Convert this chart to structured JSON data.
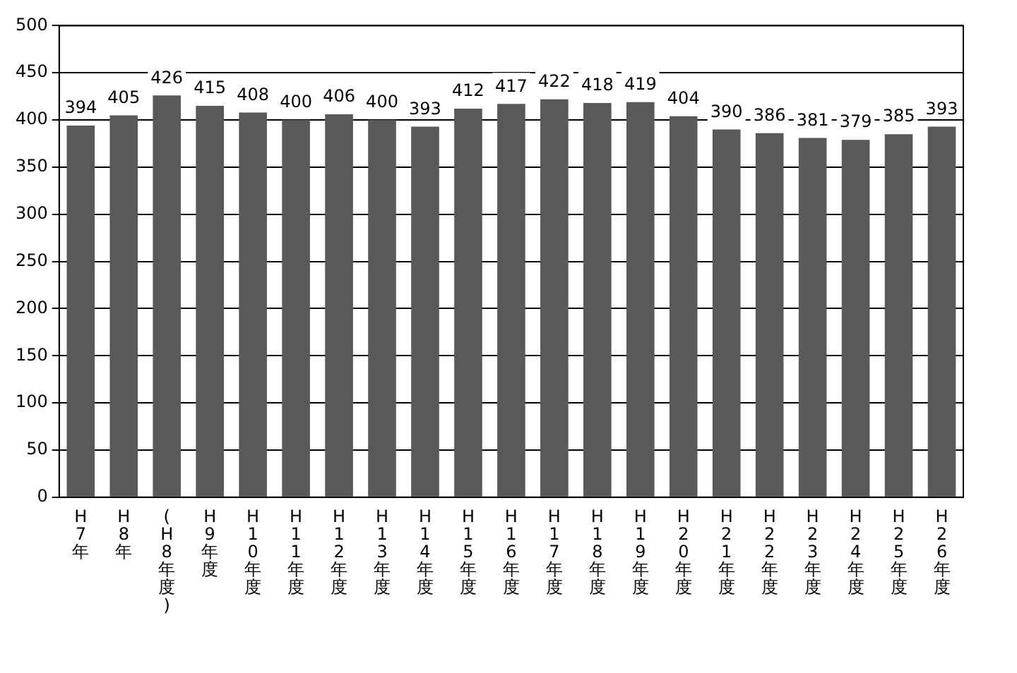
{
  "chart_data": {
    "type": "bar",
    "categories": [
      "H7年",
      "H8年",
      "(H8年度)",
      "H9年度",
      "H10年度",
      "H11年度",
      "H12年度",
      "H13年度",
      "H14年度",
      "H15年度",
      "H16年度",
      "H17年度",
      "H18年度",
      "H19年度",
      "H20年度",
      "H21年度",
      "H22年度",
      "H23年度",
      "H24年度",
      "H25年度",
      "H26年度"
    ],
    "values": [
      394,
      405,
      426,
      415,
      408,
      400,
      406,
      400,
      393,
      412,
      417,
      422,
      418,
      419,
      404,
      390,
      386,
      381,
      379,
      385,
      393
    ],
    "color": "#595959",
    "ylim": [
      0,
      500
    ],
    "yticks": [
      0,
      50,
      100,
      150,
      200,
      250,
      300,
      350,
      400,
      450,
      500
    ],
    "grid": "y",
    "data_labels": true,
    "legend": false
  }
}
